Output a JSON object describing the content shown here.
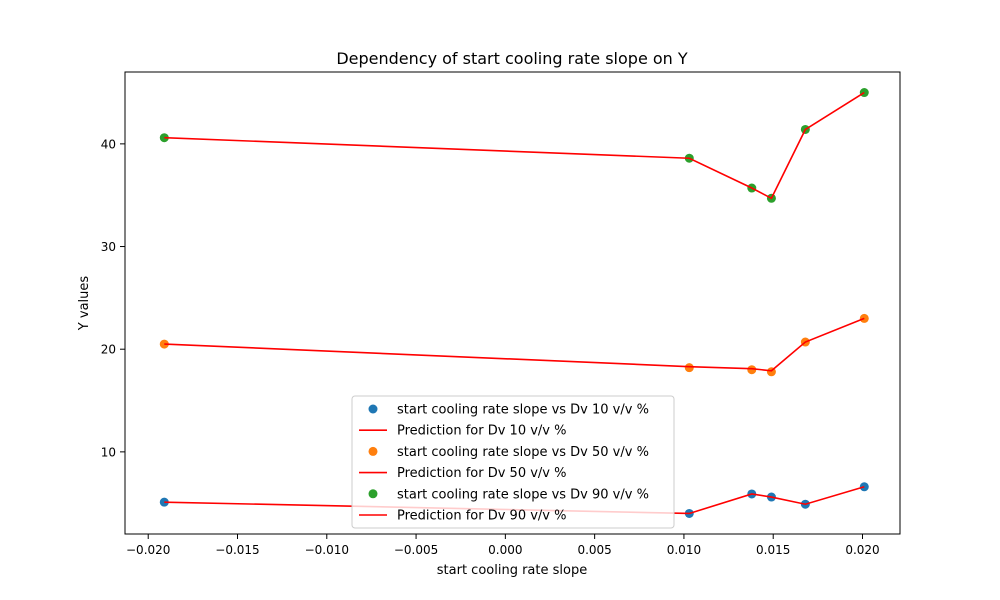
{
  "chart_data": {
    "type": "scatter",
    "title": "Dependency of start cooling rate slope on Y",
    "xlabel": "start cooling rate slope",
    "ylabel": "Y values",
    "xlim": [
      -0.0213,
      0.0221
    ],
    "ylim": [
      2.0,
      47.0
    ],
    "x_ticks": [
      -0.02,
      -0.015,
      -0.01,
      -0.005,
      0.0,
      0.005,
      0.01,
      0.015,
      0.02
    ],
    "x_tick_labels": [
      "−0.020",
      "−0.015",
      "−0.010",
      "−0.005",
      "0.000",
      "0.005",
      "0.010",
      "0.015",
      "0.020"
    ],
    "y_ticks": [
      10,
      20,
      30,
      40
    ],
    "y_tick_labels": [
      "10",
      "20",
      "30",
      "40"
    ],
    "grid": false,
    "legend_position": "lower-center",
    "x": [
      -0.0191,
      0.0103,
      0.0138,
      0.0149,
      0.0168,
      0.0201
    ],
    "series": [
      {
        "name": "start cooling rate slope vs Dv 10 v/v %",
        "kind": "scatter",
        "color": "#1f77b4",
        "values": [
          5.1,
          4.0,
          5.9,
          5.6,
          4.9,
          6.6
        ]
      },
      {
        "name": "Prediction for Dv 10 v/v %",
        "kind": "line",
        "color": "#ff0000",
        "values": [
          5.1,
          4.0,
          5.9,
          5.6,
          4.9,
          6.6
        ]
      },
      {
        "name": "start cooling rate slope vs Dv 50 v/v %",
        "kind": "scatter",
        "color": "#ff7f0e",
        "values": [
          20.5,
          18.2,
          18.0,
          17.8,
          20.7,
          23.0
        ]
      },
      {
        "name": "Prediction for Dv 50 v/v %",
        "kind": "line",
        "color": "#ff0000",
        "values": [
          20.5,
          18.3,
          18.1,
          17.9,
          20.7,
          23.0
        ]
      },
      {
        "name": "start cooling rate slope vs Dv 90 v/v %",
        "kind": "scatter",
        "color": "#2ca02c",
        "values": [
          40.6,
          38.6,
          35.7,
          34.7,
          41.4,
          45.0
        ]
      },
      {
        "name": "Prediction for Dv 90 v/v %",
        "kind": "line",
        "color": "#ff0000",
        "values": [
          40.6,
          38.6,
          35.7,
          34.7,
          41.4,
          45.0
        ]
      }
    ]
  }
}
